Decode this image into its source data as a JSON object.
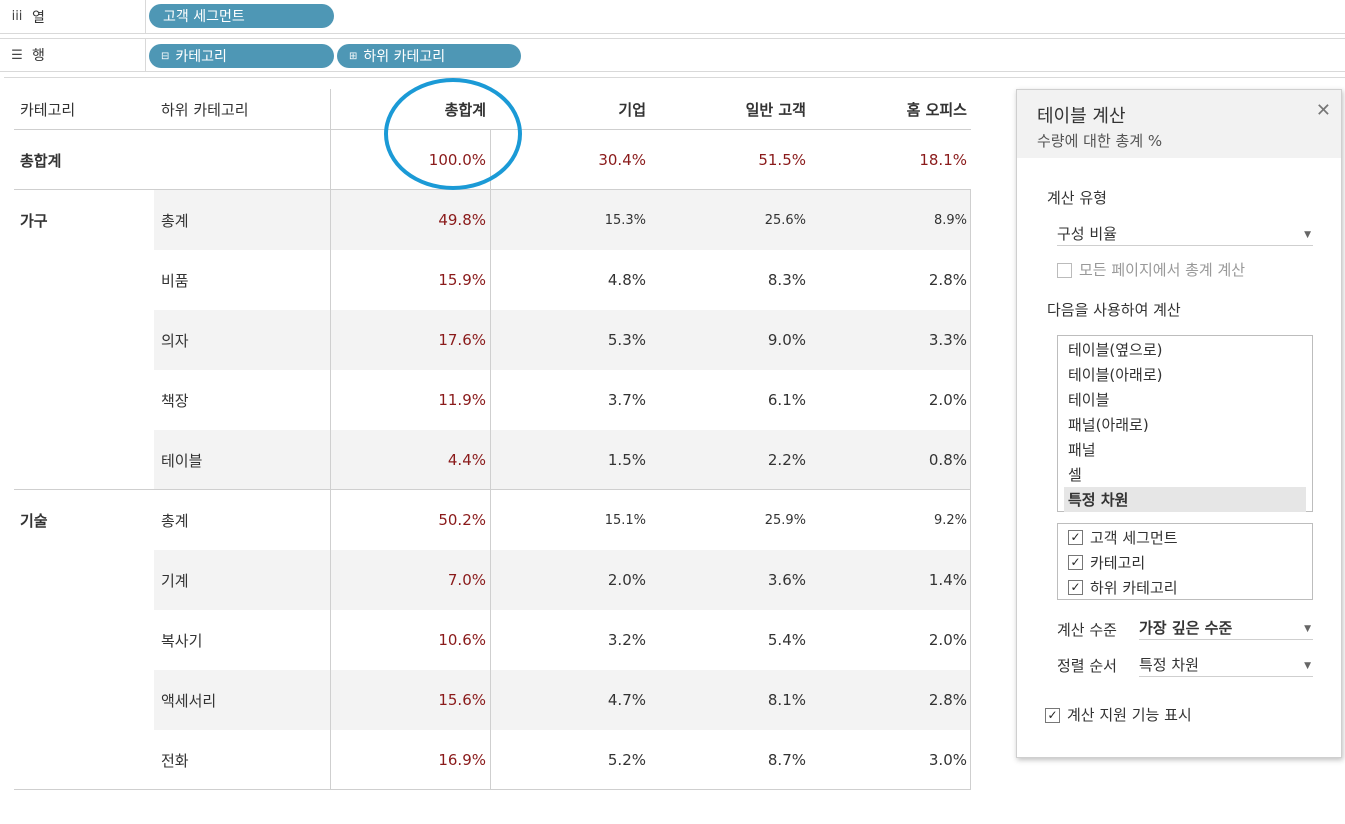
{
  "shelves": {
    "columns": {
      "label": "열",
      "pills": [
        "고객 세그먼트"
      ]
    },
    "rows": {
      "label": "행",
      "pills": [
        "카테고리",
        "하위 카테고리"
      ]
    }
  },
  "table": {
    "headers": [
      "카테고리",
      "하위 카테고리",
      "총합계",
      "기업",
      "일반 고객",
      "홈 오피스"
    ],
    "grand_total": {
      "label": "총합계",
      "values": [
        "100.0%",
        "30.4%",
        "51.5%",
        "18.1%"
      ]
    },
    "groups": [
      {
        "category": "가구",
        "rows": [
          {
            "sub": "총계",
            "values": [
              "49.8%",
              "15.3%",
              "25.6%",
              "8.9%"
            ]
          },
          {
            "sub": "비품",
            "values": [
              "15.9%",
              "4.8%",
              "8.3%",
              "2.8%"
            ]
          },
          {
            "sub": "의자",
            "values": [
              "17.6%",
              "5.3%",
              "9.0%",
              "3.3%"
            ]
          },
          {
            "sub": "책장",
            "values": [
              "11.9%",
              "3.7%",
              "6.1%",
              "2.0%"
            ]
          },
          {
            "sub": "테이블",
            "values": [
              "4.4%",
              "1.5%",
              "2.2%",
              "0.8%"
            ]
          }
        ]
      },
      {
        "category": "기술",
        "rows": [
          {
            "sub": "총계",
            "values": [
              "50.2%",
              "15.1%",
              "25.9%",
              "9.2%"
            ]
          },
          {
            "sub": "기계",
            "values": [
              "7.0%",
              "2.0%",
              "3.6%",
              "1.4%"
            ]
          },
          {
            "sub": "복사기",
            "values": [
              "10.6%",
              "3.2%",
              "5.4%",
              "2.0%"
            ]
          },
          {
            "sub": "액세서리",
            "values": [
              "15.6%",
              "4.7%",
              "8.1%",
              "2.8%"
            ]
          },
          {
            "sub": "전화",
            "values": [
              "16.9%",
              "5.2%",
              "8.7%",
              "3.0%"
            ]
          }
        ]
      }
    ]
  },
  "dialog": {
    "title": "테이블 계산",
    "subtitle": "수량에 대한 총계 %",
    "calc_type_label": "계산 유형",
    "calc_type_value": "구성 비율",
    "all_pages_label": "모든 페이지에서 총계 계산",
    "compute_using_label": "다음을 사용하여 계산",
    "compute_options": [
      "테이블(옆으로)",
      "테이블(아래로)",
      "테이블",
      "패널(아래로)",
      "패널",
      "셀",
      "특정 차원"
    ],
    "dimensions": [
      "고객 세그먼트",
      "카테고리",
      "하위 카테고리"
    ],
    "level_label": "계산 수준",
    "level_value": "가장 깊은 수준",
    "sort_label": "정렬 순서",
    "sort_value": "특정 차원",
    "show_assistance_label": "계산 지원 기능 표시"
  }
}
